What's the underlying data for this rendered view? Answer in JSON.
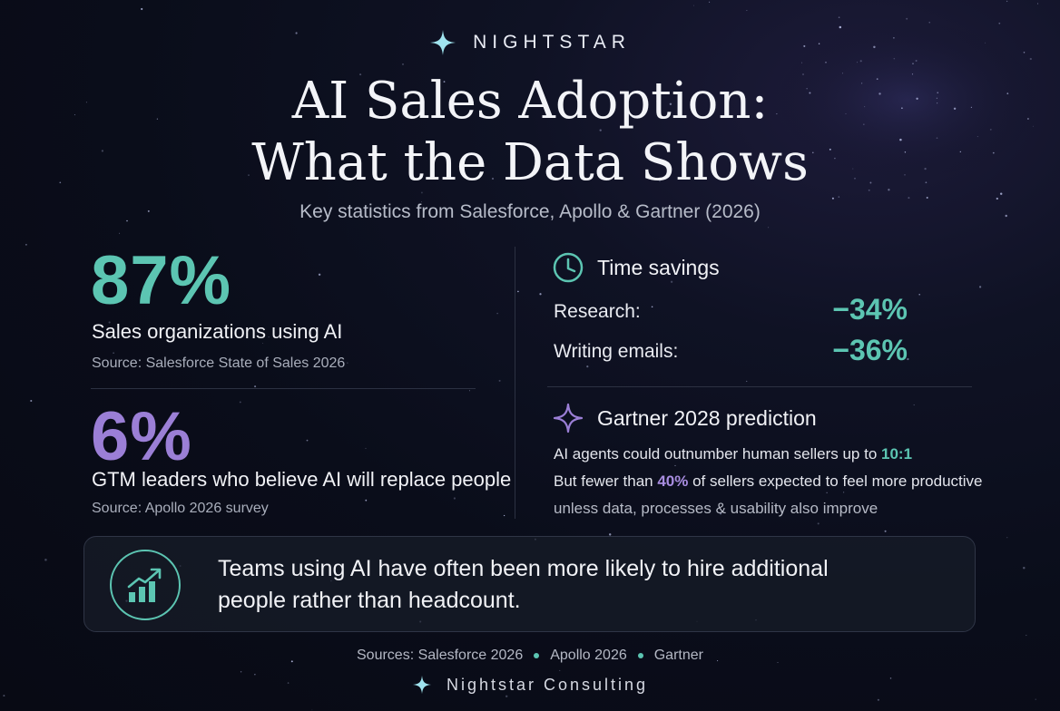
{
  "brand": {
    "name": "NIGHTSTAR",
    "icon": "sparkle-icon",
    "icon_color": "#9fe3ee"
  },
  "header": {
    "title_line1": "AI Sales Adoption:",
    "title_line2": "What the Data Shows",
    "subtitle": "Key statistics from Salesforce, Apollo & Gartner (2026)"
  },
  "stats": [
    {
      "value": "87%",
      "label": "Sales organizations using AI",
      "source": "Source: Salesforce State of Sales 2026",
      "color": "#5cc5b2"
    },
    {
      "value": "6%",
      "label": "GTM leaders who believe AI will replace people",
      "source": "Source: Apollo 2026 survey",
      "color": "#9b7fd6"
    }
  ],
  "time_savings": {
    "title": "Time savings",
    "icon": "clock-icon",
    "rows": [
      {
        "label": "Research:",
        "value": "−34%"
      },
      {
        "label": "Writing emails:",
        "value": "−36%"
      }
    ]
  },
  "prediction": {
    "title": "Gartner 2028 prediction",
    "icon": "sparkle-outline-icon",
    "line1_text": "AI agents could outnumber human sellers up to ",
    "line1_highlight": "10:1",
    "line2_pre": "But fewer than ",
    "line2_highlight": "40%",
    "line2_post": " of sellers expected to feel more productive",
    "line3": "unless data, processes & usability also improve"
  },
  "callout": {
    "icon": "growth-chart-icon",
    "text_line1": "Teams using AI have often been more likely to hire additional",
    "text_line2": "people rather than headcount."
  },
  "footer": {
    "sources": [
      "Sources: Salesforce 2026",
      "Apollo 2026",
      "Gartner"
    ],
    "company": "Nightstar Consulting",
    "icon": "sparkle-icon"
  },
  "colors": {
    "accent_teal": "#5cc5b2",
    "accent_purple": "#9b7fd6",
    "background": "#0a0d1a"
  }
}
